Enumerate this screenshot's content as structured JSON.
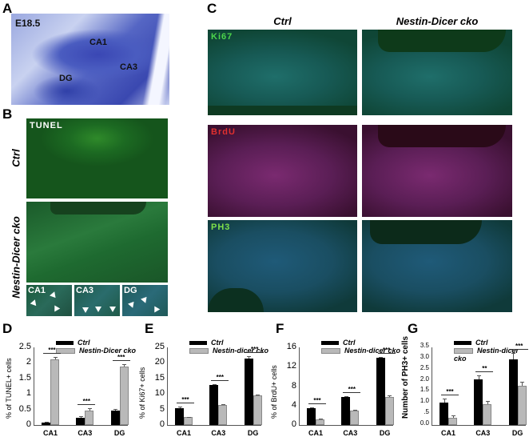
{
  "panels": {
    "A": {
      "label": "A",
      "stage": "E18.5",
      "regions": [
        "CA1",
        "CA3",
        "DG"
      ]
    },
    "B": {
      "label": "B",
      "stain": "TUNEL",
      "rows": [
        "Ctrl",
        "Nestin-Dicer cko"
      ],
      "insets": [
        "CA1",
        "CA3",
        "DG"
      ]
    },
    "C": {
      "label": "C",
      "columns": [
        "Ctrl",
        "Nestin-Dicer cko"
      ],
      "stains": [
        "Ki67",
        "BrdU",
        "PH3"
      ]
    },
    "D": {
      "label": "D"
    },
    "E": {
      "label": "E"
    },
    "F": {
      "label": "F"
    },
    "G": {
      "label": "G"
    }
  },
  "colors": {
    "ctrl": "#000000",
    "cko": "#b9b9b9",
    "ki67_label": "#4cd64c",
    "brdu_label": "#e03030",
    "ph3_label": "#7ee04a"
  },
  "chart_data": [
    {
      "panel": "D",
      "type": "bar",
      "categories": [
        "CA1",
        "CA3",
        "DG"
      ],
      "series": [
        {
          "name": "Ctrl",
          "values": [
            0.08,
            0.22,
            0.46
          ],
          "errors": [
            0.03,
            0.06,
            0.05
          ]
        },
        {
          "name": "Nestin-Dicer cko",
          "values": [
            2.12,
            0.46,
            1.88
          ],
          "errors": [
            0.08,
            0.08,
            0.07
          ]
        }
      ],
      "significance": [
        "***",
        "***",
        "***"
      ],
      "ylabel": "% of TUNEL+ cells",
      "ylim": [
        0,
        2.5
      ],
      "yticks": [
        "0",
        "0.5",
        "1",
        "1.5",
        "2",
        "2.5"
      ],
      "legend": [
        "Ctrl",
        "Nestin-Dicer cko"
      ]
    },
    {
      "panel": "E",
      "type": "bar",
      "categories": [
        "CA1",
        "CA3",
        "DG"
      ],
      "series": [
        {
          "name": "Ctrl",
          "values": [
            5.5,
            12.8,
            21.5
          ],
          "errors": [
            0.3,
            0.3,
            0.6
          ]
        },
        {
          "name": "Nestin-dicer cko",
          "values": [
            2.5,
            6.4,
            9.6
          ],
          "errors": [
            0.2,
            0.2,
            0.3
          ]
        }
      ],
      "significance": [
        "***",
        "***",
        "***"
      ],
      "ylabel": "% of Ki67+ cells",
      "ylim": [
        0,
        25
      ],
      "yticks": [
        "0",
        "5",
        "10",
        "15",
        "20",
        "25"
      ],
      "legend": [
        "Ctrl",
        "Nestin-dicer cko"
      ]
    },
    {
      "panel": "F",
      "type": "bar",
      "categories": [
        "CA1",
        "CA3",
        "DG"
      ],
      "series": [
        {
          "name": "Ctrl",
          "values": [
            3.4,
            5.8,
            13.8
          ],
          "errors": [
            0.15,
            0.2,
            0.25
          ]
        },
        {
          "name": "Nestin-dicer cko",
          "values": [
            1.1,
            2.9,
            5.8
          ],
          "errors": [
            0.15,
            0.2,
            0.3
          ]
        }
      ],
      "significance": [
        "***",
        "***",
        "***"
      ],
      "ylabel": "% of BrdU+ cells",
      "ylim": [
        0,
        16
      ],
      "yticks": [
        "0",
        "4",
        "8",
        "12",
        "16"
      ],
      "legend": [
        "Ctrl",
        "Nestin-dicer cko"
      ]
    },
    {
      "panel": "G",
      "type": "bar",
      "categories": [
        "CA1",
        "CA3",
        "DG"
      ],
      "series": [
        {
          "name": "Ctrl",
          "values": [
            1.0,
            2.05,
            2.95
          ],
          "errors": [
            0.18,
            0.2,
            0.3
          ]
        },
        {
          "name": "Nestin-dicer cko",
          "values": [
            0.33,
            0.95,
            1.77
          ],
          "errors": [
            0.1,
            0.15,
            0.18
          ]
        }
      ],
      "significance": [
        "***",
        "**",
        "***"
      ],
      "ylabel": "Number of PH3+ cells",
      "ylim": [
        0,
        3.5
      ],
      "yticks": [
        "0.0",
        ".5",
        "1.0",
        "1.5",
        "2.0",
        "2.5",
        "3.0",
        "3.5"
      ],
      "legend": [
        "Ctrl",
        "Nestin-dicer cko"
      ]
    }
  ]
}
